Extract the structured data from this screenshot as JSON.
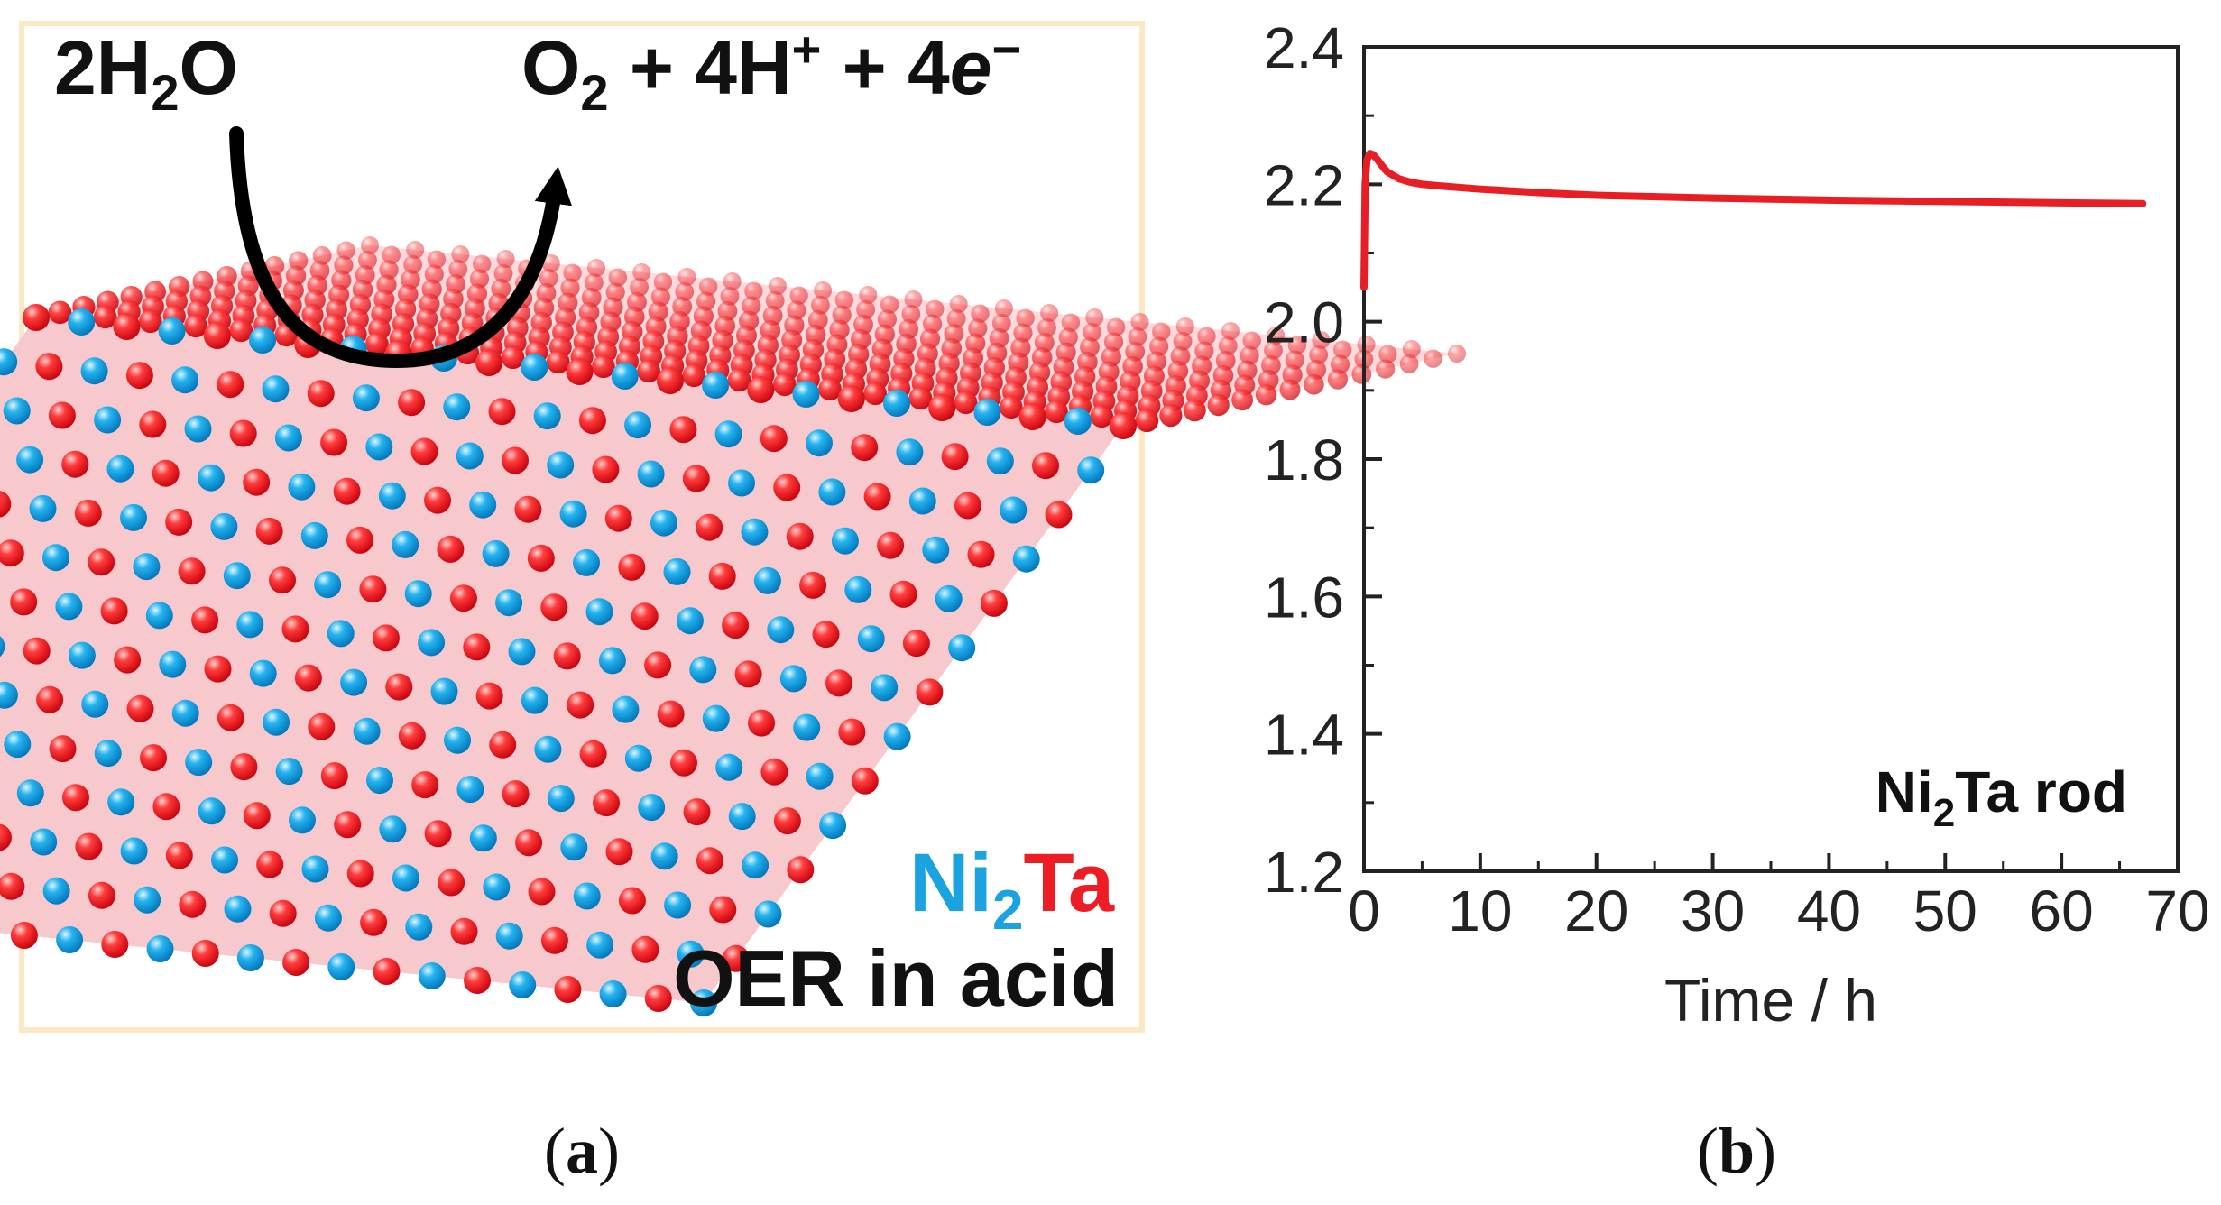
{
  "panel_a": {
    "reactant": {
      "coef": "2H",
      "sub": "2",
      "rest": "O"
    },
    "product": {
      "o": "O",
      "o_sub": "2",
      "mid": " + 4H",
      "h_sup": "+",
      "plus": " + 4",
      "e": "e",
      "e_sup": "−"
    },
    "material": {
      "ni": "Ni",
      "ni_sub": "2",
      "ta": "Ta"
    },
    "caption": "OER in acid",
    "colors": {
      "ni_blue": "#1aa3e0",
      "ta_red": "#ee1c24",
      "border": "#fbe8c4"
    },
    "label": {
      "open": "(",
      "letter": "a",
      "close": ")"
    }
  },
  "panel_b": {
    "label": {
      "open": "(",
      "letter": "b",
      "close": ")"
    },
    "annotation": {
      "ni": "Ni",
      "sub": "2",
      "rest": "Ta rod"
    }
  },
  "chart_data": {
    "type": "line",
    "title": "",
    "xlabel": "Time / h",
    "ylabel": "",
    "xlim": [
      0,
      70
    ],
    "ylim": [
      1.2,
      2.4
    ],
    "xticks": [
      0,
      10,
      20,
      30,
      40,
      50,
      60,
      70
    ],
    "yticks": [
      1.2,
      1.4,
      1.6,
      1.8,
      2.0,
      2.2,
      2.4
    ],
    "xtick_labels": [
      "0",
      "10",
      "20",
      "30",
      "40",
      "50",
      "60",
      "70"
    ],
    "ytick_labels": [
      "1.2",
      "1.4",
      "1.6",
      "1.8",
      "2.0",
      "2.2",
      "2.4"
    ],
    "grid": false,
    "series": [
      {
        "name": "Ni2Ta rod",
        "color": "#e81e25",
        "x": [
          0,
          0.1,
          0.25,
          0.5,
          0.8,
          1.2,
          1.6,
          2,
          3,
          4,
          5,
          7,
          10,
          15,
          20,
          30,
          40,
          50,
          60,
          67
        ],
        "y": [
          2.05,
          2.2,
          2.235,
          2.245,
          2.243,
          2.235,
          2.226,
          2.218,
          2.208,
          2.203,
          2.2,
          2.197,
          2.193,
          2.188,
          2.184,
          2.18,
          2.177,
          2.175,
          2.173,
          2.172
        ]
      }
    ]
  }
}
